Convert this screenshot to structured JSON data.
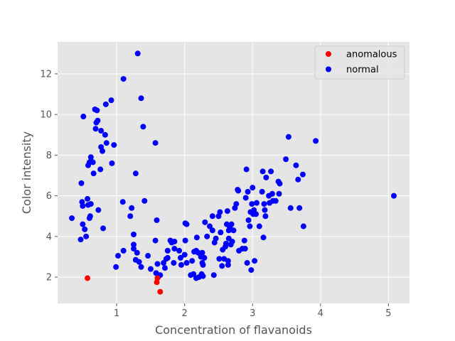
{
  "chart_data": {
    "type": "scatter",
    "title": "",
    "xlabel": "Concentration of flavanoids",
    "ylabel": "Color intensity",
    "xlim": [
      0.13,
      5.31
    ],
    "ylim": [
      0.71,
      13.57
    ],
    "xticks": [
      1,
      2,
      3,
      4,
      5
    ],
    "yticks": [
      2,
      4,
      6,
      8,
      10,
      12
    ],
    "grid": true,
    "legend_position": "top-right",
    "series": [
      {
        "name": "anomalous",
        "color": "#ff0000",
        "points": [
          [
            0.57,
            1.95
          ],
          [
            1.59,
            1.75
          ],
          [
            1.6,
            1.95
          ],
          [
            1.64,
            1.28
          ]
        ]
      },
      {
        "name": "normal",
        "color": "#0000ff",
        "points": [
          [
            0.34,
            4.9
          ],
          [
            0.47,
            3.85
          ],
          [
            0.48,
            6.62
          ],
          [
            0.49,
            5.7
          ],
          [
            0.5,
            4.6
          ],
          [
            0.5,
            5.5
          ],
          [
            0.51,
            9.9
          ],
          [
            0.53,
            4.35
          ],
          [
            0.55,
            4.0
          ],
          [
            0.57,
            5.85
          ],
          [
            0.58,
            5.55
          ],
          [
            0.58,
            7.5
          ],
          [
            0.6,
            4.9
          ],
          [
            0.6,
            7.65
          ],
          [
            0.61,
            5.0
          ],
          [
            0.62,
            5.6
          ],
          [
            0.62,
            7.9
          ],
          [
            0.65,
            7.65
          ],
          [
            0.66,
            7.1
          ],
          [
            0.68,
            10.25
          ],
          [
            0.69,
            9.3
          ],
          [
            0.7,
            9.6
          ],
          [
            0.71,
            10.2
          ],
          [
            0.72,
            9.7
          ],
          [
            0.73,
            5.3
          ],
          [
            0.76,
            7.3
          ],
          [
            0.77,
            9.2
          ],
          [
            0.77,
            8.4
          ],
          [
            0.79,
            8.2
          ],
          [
            0.8,
            4.4
          ],
          [
            0.83,
            9.0
          ],
          [
            0.84,
            10.5
          ],
          [
            0.85,
            8.6
          ],
          [
            0.92,
            10.7
          ],
          [
            0.93,
            7.6
          ],
          [
            0.96,
            8.5
          ],
          [
            0.99,
            2.5
          ],
          [
            1.02,
            3.05
          ],
          [
            1.09,
            5.7
          ],
          [
            1.1,
            3.3
          ],
          [
            1.1,
            11.75
          ],
          [
            1.2,
            5.0
          ],
          [
            1.22,
            5.4
          ],
          [
            1.25,
            4.1
          ],
          [
            1.25,
            3.6
          ],
          [
            1.25,
            3.4
          ],
          [
            1.28,
            7.1
          ],
          [
            1.28,
            2.85
          ],
          [
            1.3,
            3.2
          ],
          [
            1.31,
            13.0
          ],
          [
            1.33,
            2.75
          ],
          [
            1.36,
            2.5
          ],
          [
            1.36,
            10.8
          ],
          [
            1.39,
            9.4
          ],
          [
            1.41,
            5.75
          ],
          [
            1.46,
            3.05
          ],
          [
            1.5,
            2.4
          ],
          [
            1.57,
            8.6
          ],
          [
            1.57,
            3.8
          ],
          [
            1.58,
            2.2
          ],
          [
            1.59,
            4.8
          ],
          [
            1.6,
            2.65
          ],
          [
            1.61,
            2.0
          ],
          [
            1.64,
            2.1
          ],
          [
            1.69,
            2.7
          ],
          [
            1.71,
            2.45
          ],
          [
            1.73,
            2.9
          ],
          [
            1.75,
            3.3
          ],
          [
            1.75,
            2.95
          ],
          [
            1.79,
            3.8
          ],
          [
            1.81,
            3.7
          ],
          [
            1.84,
            2.7
          ],
          [
            1.85,
            3.75
          ],
          [
            1.85,
            3.4
          ],
          [
            1.92,
            3.3
          ],
          [
            1.94,
            2.95
          ],
          [
            1.95,
            2.6
          ],
          [
            2.0,
            3.1
          ],
          [
            2.01,
            3.8
          ],
          [
            2.01,
            4.65
          ],
          [
            2.03,
            4.6
          ],
          [
            2.03,
            2.7
          ],
          [
            2.09,
            2.1
          ],
          [
            2.11,
            2.8
          ],
          [
            2.13,
            2.15
          ],
          [
            2.14,
            3.25
          ],
          [
            2.17,
            1.95
          ],
          [
            2.17,
            3.3
          ],
          [
            2.18,
            3.95
          ],
          [
            2.2,
            3.2
          ],
          [
            2.21,
            2.0
          ],
          [
            2.24,
            3.0
          ],
          [
            2.25,
            2.15
          ],
          [
            2.26,
            2.7
          ],
          [
            2.26,
            3.2
          ],
          [
            2.27,
            2.6
          ],
          [
            2.27,
            2.05
          ],
          [
            2.29,
            2.95
          ],
          [
            2.3,
            4.7
          ],
          [
            2.33,
            4.0
          ],
          [
            2.37,
            4.5
          ],
          [
            2.41,
            4.3
          ],
          [
            2.41,
            5.0
          ],
          [
            2.43,
            2.1
          ],
          [
            2.44,
            3.7
          ],
          [
            2.46,
            3.9
          ],
          [
            2.5,
            5.0
          ],
          [
            2.51,
            2.9
          ],
          [
            2.52,
            5.2
          ],
          [
            2.53,
            4.2
          ],
          [
            2.55,
            2.55
          ],
          [
            2.56,
            3.35
          ],
          [
            2.58,
            2.9
          ],
          [
            2.6,
            3.5
          ],
          [
            2.61,
            3.65
          ],
          [
            2.62,
            4.6
          ],
          [
            2.63,
            5.25
          ],
          [
            2.64,
            2.6
          ],
          [
            2.64,
            2.8
          ],
          [
            2.65,
            3.9
          ],
          [
            2.65,
            4.3
          ],
          [
            2.66,
            4.5
          ],
          [
            2.67,
            4.4
          ],
          [
            2.68,
            3.6
          ],
          [
            2.69,
            4.6
          ],
          [
            2.7,
            3.75
          ],
          [
            2.72,
            4.3
          ],
          [
            2.74,
            5.4
          ],
          [
            2.76,
            5.6
          ],
          [
            2.78,
            6.3
          ],
          [
            2.79,
            6.25
          ],
          [
            2.8,
            3.3
          ],
          [
            2.85,
            3.4
          ],
          [
            2.88,
            3.8
          ],
          [
            2.89,
            3.4
          ],
          [
            2.9,
            5.9
          ],
          [
            2.91,
            7.3
          ],
          [
            2.92,
            2.7
          ],
          [
            2.93,
            6.2
          ],
          [
            2.94,
            4.8
          ],
          [
            2.96,
            4.5
          ],
          [
            2.97,
            5.2
          ],
          [
            2.98,
            2.35
          ],
          [
            2.99,
            5.6
          ],
          [
            3.0,
            6.4
          ],
          [
            3.01,
            5.1
          ],
          [
            3.02,
            5.3
          ],
          [
            3.03,
            2.8
          ],
          [
            3.05,
            5.1
          ],
          [
            3.06,
            5.65
          ],
          [
            3.1,
            4.5
          ],
          [
            3.14,
            6.2
          ],
          [
            3.15,
            7.2
          ],
          [
            3.16,
            3.95
          ],
          [
            3.17,
            5.6
          ],
          [
            3.18,
            5.3
          ],
          [
            3.19,
            5.0
          ],
          [
            3.2,
            6.9
          ],
          [
            3.24,
            6.0
          ],
          [
            3.25,
            5.65
          ],
          [
            3.27,
            7.2
          ],
          [
            3.29,
            6.1
          ],
          [
            3.3,
            5.75
          ],
          [
            3.34,
            5.75
          ],
          [
            3.38,
            6.7
          ],
          [
            3.39,
            6.1
          ],
          [
            3.4,
            6.6
          ],
          [
            3.49,
            7.8
          ],
          [
            3.53,
            8.9
          ],
          [
            3.56,
            5.4
          ],
          [
            3.64,
            7.5
          ],
          [
            3.67,
            6.8
          ],
          [
            3.69,
            5.4
          ],
          [
            3.74,
            7.05
          ],
          [
            3.75,
            4.5
          ],
          [
            3.93,
            8.7
          ],
          [
            5.08,
            6.0
          ]
        ]
      }
    ]
  }
}
